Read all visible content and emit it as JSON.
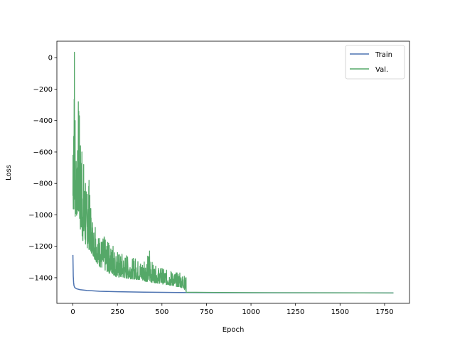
{
  "chart_data": {
    "type": "line",
    "title": "",
    "xlabel": "Epoch",
    "ylabel": "Loss",
    "xlim": [
      -90,
      1890
    ],
    "ylim": [
      -1563,
      105
    ],
    "xticks": [
      0,
      250,
      500,
      750,
      1000,
      1250,
      1500,
      1750
    ],
    "yticks": [
      0,
      -200,
      -400,
      -600,
      -800,
      -1000,
      -1200,
      -1400
    ],
    "grid": false,
    "legend": {
      "position": "top-right"
    },
    "series": [
      {
        "name": "Train",
        "color": "#4c72b0",
        "points": [
          [
            0,
            -1255
          ],
          [
            2,
            -1390
          ],
          [
            4,
            -1430
          ],
          [
            6,
            -1450
          ],
          [
            10,
            -1462
          ],
          [
            20,
            -1470
          ],
          [
            40,
            -1476
          ],
          [
            80,
            -1481
          ],
          [
            150,
            -1486
          ],
          [
            250,
            -1489
          ],
          [
            400,
            -1492
          ],
          [
            600,
            -1494
          ],
          [
            800,
            -1495
          ],
          [
            1000,
            -1496
          ],
          [
            1400,
            -1496
          ],
          [
            1800,
            -1497
          ]
        ]
      },
      {
        "name": "Val.",
        "color": "#55a868",
        "noisy_envelope": [
          [
            0,
            -1000,
            -620
          ],
          [
            4,
            -950,
            -500
          ],
          [
            8,
            -1000,
            35
          ],
          [
            12,
            -1020,
            -400
          ],
          [
            18,
            -1010,
            -660
          ],
          [
            24,
            -1000,
            -700
          ],
          [
            30,
            -1010,
            -280
          ],
          [
            36,
            -1030,
            -370
          ],
          [
            42,
            -1100,
            -560
          ],
          [
            50,
            -1150,
            -600
          ],
          [
            60,
            -1180,
            -680
          ],
          [
            70,
            -1200,
            -800
          ],
          [
            80,
            -1210,
            -870
          ],
          [
            90,
            -1220,
            -780
          ],
          [
            100,
            -1240,
            -960
          ],
          [
            110,
            -1250,
            -1050
          ],
          [
            125,
            -1290,
            -1080
          ],
          [
            150,
            -1330,
            -1150
          ],
          [
            175,
            -1350,
            -1140
          ],
          [
            200,
            -1370,
            -1180
          ],
          [
            225,
            -1380,
            -1200
          ],
          [
            250,
            -1400,
            -1240
          ],
          [
            275,
            -1400,
            -1250
          ],
          [
            300,
            -1405,
            -1260
          ],
          [
            350,
            -1410,
            -1280
          ],
          [
            400,
            -1420,
            -1300
          ],
          [
            430,
            -1430,
            -1230
          ],
          [
            450,
            -1430,
            -1320
          ],
          [
            500,
            -1440,
            -1340
          ],
          [
            550,
            -1450,
            -1360
          ],
          [
            600,
            -1460,
            -1370
          ],
          [
            625,
            -1470,
            -1390
          ],
          [
            635,
            -1490,
            -1400
          ]
        ],
        "tail": [
          [
            636,
            -1492
          ],
          [
            750,
            -1493
          ],
          [
            1000,
            -1495
          ],
          [
            1400,
            -1496
          ],
          [
            1800,
            -1497
          ]
        ]
      }
    ]
  }
}
